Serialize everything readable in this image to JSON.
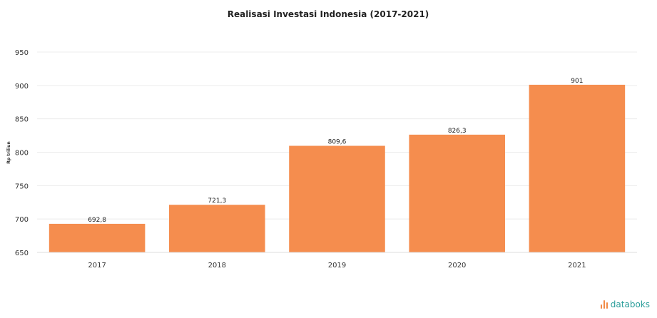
{
  "chart_data": {
    "type": "bar",
    "title": "Realisasi Investasi Indonesia (2017-2021)",
    "ylabel": "Rp triliun",
    "categories": [
      "2017",
      "2018",
      "2019",
      "2020",
      "2021"
    ],
    "values": [
      692.8,
      721.3,
      809.6,
      826.3,
      901
    ],
    "value_labels": [
      "692,8",
      "721,3",
      "809,6",
      "826,3",
      "901"
    ],
    "ylim": [
      650,
      950
    ],
    "yticks": [
      650,
      700,
      750,
      800,
      850,
      900,
      950
    ],
    "grid": true,
    "bar_color": "#f58d4e"
  },
  "brand": {
    "name": "databoks",
    "icon": "databoks-logo-icon",
    "color": "#2a9d9a"
  }
}
